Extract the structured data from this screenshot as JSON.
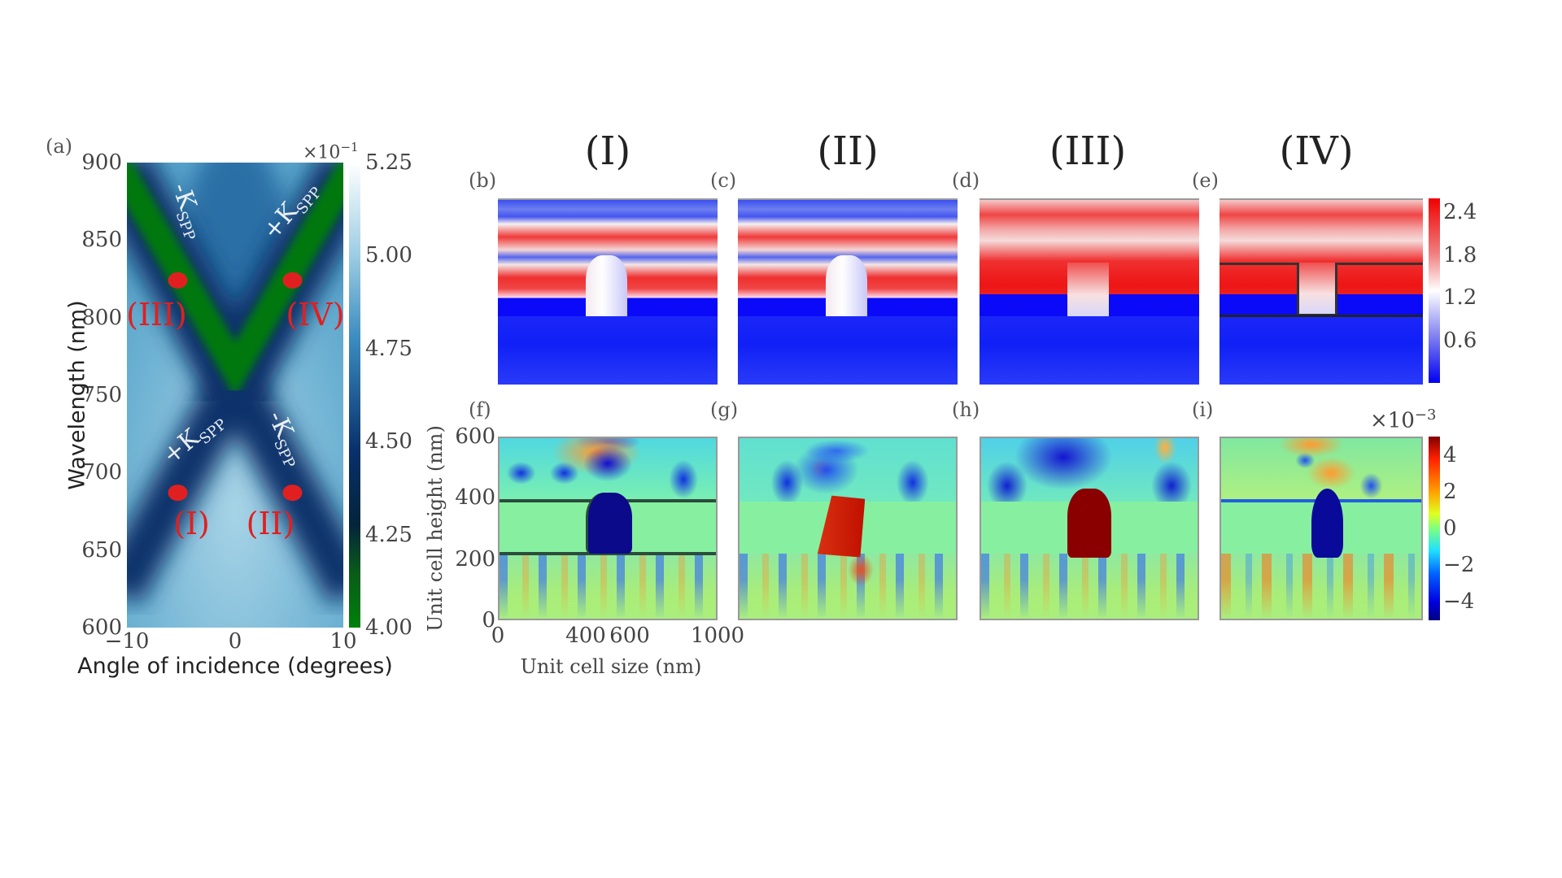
{
  "panel_labels": {
    "a": "(a)",
    "b": "(b)",
    "c": "(c)",
    "d": "(d)",
    "e": "(e)",
    "f": "(f)",
    "g": "(g)",
    "h": "(h)",
    "i": "(i)"
  },
  "column_titles": [
    "(I)",
    "(II)",
    "(III)",
    "(IV)"
  ],
  "chart_data": [
    {
      "type": "heatmap",
      "panel": "(a)",
      "xlabel": "Angle of incidence (degrees)",
      "ylabel": "Wavelength (nm)",
      "xlim": [
        -10,
        10
      ],
      "ylim": [
        600,
        900
      ],
      "xticks": [
        "−10",
        "0",
        "10"
      ],
      "xtick_values": [
        -10,
        0,
        10
      ],
      "yticks": [
        "900",
        "850",
        "800",
        "750",
        "700",
        "650",
        "600"
      ],
      "ytick_values": [
        900,
        850,
        800,
        750,
        700,
        650,
        600
      ],
      "colorbar": {
        "multiplier": "×10",
        "exponent": "−1",
        "range": [
          4.0,
          5.25
        ],
        "ticks": [
          "5.25",
          "5.00",
          "4.75",
          "4.50",
          "4.25",
          "4.00"
        ],
        "tick_values": [
          5.25,
          5.0,
          4.75,
          4.5,
          4.25,
          4.0
        ],
        "colormap": "green-navy-lightblue-white"
      },
      "band_crossing": {
        "angle": 0,
        "wavelength": 760
      },
      "markers": [
        {
          "label": "(I)",
          "angle": -5.3,
          "wavelength": 687
        },
        {
          "label": "(II)",
          "angle": 5.3,
          "wavelength": 687
        },
        {
          "label": "(III)",
          "angle": -5.3,
          "wavelength": 824
        },
        {
          "label": "(IV)",
          "angle": 5.3,
          "wavelength": 824
        }
      ],
      "annotations": [
        {
          "base": "-K",
          "sub": "SPP"
        },
        {
          "base": "+K",
          "sub": "SPP"
        },
        {
          "base": "+K",
          "sub": "SPP"
        },
        {
          "base": "-K",
          "sub": "SPP"
        }
      ],
      "marker_color": "#e02020"
    },
    {
      "type": "heatmap",
      "panels": [
        "(b)",
        "(c)",
        "(d)",
        "(e)"
      ],
      "description_values": "field magnitude maps",
      "colorbar": {
        "range": [
          0,
          2.6
        ],
        "ticks": [
          "2.4",
          "1.8",
          "1.2",
          "0.6"
        ],
        "tick_values": [
          2.4,
          1.8,
          1.2,
          0.6
        ],
        "colormap": "blue-white-red"
      }
    },
    {
      "type": "heatmap",
      "panels": [
        "(f)",
        "(g)",
        "(h)",
        "(i)"
      ],
      "xlabel": "Unit cell size (nm)",
      "ylabel": "Unit cell height (nm)",
      "xlim": [
        0,
        1000
      ],
      "ylim": [
        0,
        600
      ],
      "xticks": [
        "0",
        "400",
        "600",
        "1000"
      ],
      "xtick_values": [
        0,
        400,
        600,
        1000
      ],
      "yticks": [
        "600",
        "400",
        "200",
        "0"
      ],
      "ytick_values": [
        600,
        400,
        200,
        0
      ],
      "colorbar": {
        "multiplier": "×10",
        "exponent": "−3",
        "range": [
          -5,
          5
        ],
        "ticks": [
          "4",
          "2",
          "0",
          "−2",
          "−4"
        ],
        "tick_values": [
          4,
          2,
          0,
          -2,
          -4
        ],
        "colormap": "jet"
      }
    }
  ]
}
